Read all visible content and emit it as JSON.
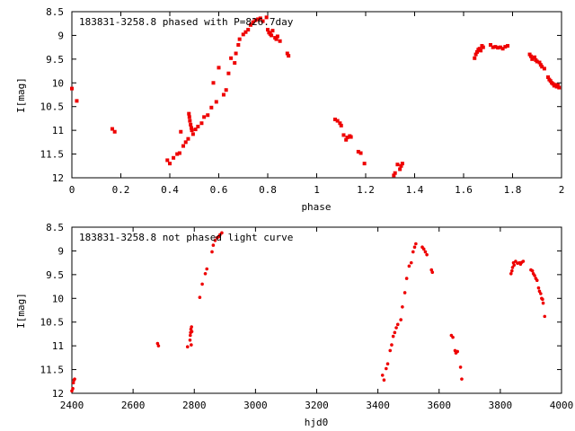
{
  "chart_data": [
    {
      "type": "scatter",
      "title": "183831-3258.8 phased with P=826.7day",
      "xlabel": "phase",
      "ylabel": "I[mag]",
      "xlim": [
        0,
        2
      ],
      "ylim": [
        12,
        8.5
      ],
      "y_inverted": true,
      "grid": false,
      "xticks": [
        "0",
        "0.2",
        "0.4",
        "0.6",
        "0.8",
        "1",
        "1.2",
        "1.4",
        "1.6",
        "1.8",
        "2"
      ],
      "yticks": [
        "8.5",
        "9",
        "9.5",
        "10",
        "10.5",
        "11",
        "11.5",
        "12"
      ],
      "marker_color": "#ee0000",
      "marker": "filled-square",
      "points": [
        [
          0.0,
          10.12
        ],
        [
          0.02,
          10.38
        ],
        [
          0.165,
          10.97
        ],
        [
          0.175,
          11.03
        ],
        [
          0.39,
          11.63
        ],
        [
          0.4,
          11.7
        ],
        [
          0.415,
          11.58
        ],
        [
          0.43,
          11.5
        ],
        [
          0.44,
          11.48
        ],
        [
          0.445,
          11.03
        ],
        [
          0.455,
          11.33
        ],
        [
          0.465,
          11.25
        ],
        [
          0.475,
          11.18
        ],
        [
          0.478,
          10.65
        ],
        [
          0.48,
          10.72
        ],
        [
          0.482,
          10.8
        ],
        [
          0.485,
          10.88
        ],
        [
          0.488,
          10.95
        ],
        [
          0.49,
          11.0
        ],
        [
          0.495,
          11.08
        ],
        [
          0.505,
          10.98
        ],
        [
          0.515,
          10.92
        ],
        [
          0.53,
          10.85
        ],
        [
          0.54,
          10.72
        ],
        [
          0.555,
          10.68
        ],
        [
          0.57,
          10.52
        ],
        [
          0.578,
          10.0
        ],
        [
          0.59,
          10.4
        ],
        [
          0.6,
          9.68
        ],
        [
          0.62,
          10.25
        ],
        [
          0.63,
          10.15
        ],
        [
          0.64,
          9.8
        ],
        [
          0.65,
          9.48
        ],
        [
          0.665,
          9.58
        ],
        [
          0.67,
          9.38
        ],
        [
          0.68,
          9.2
        ],
        [
          0.685,
          9.08
        ],
        [
          0.7,
          8.98
        ],
        [
          0.71,
          8.93
        ],
        [
          0.72,
          8.88
        ],
        [
          0.73,
          8.78
        ],
        [
          0.74,
          8.72
        ],
        [
          0.75,
          8.68
        ],
        [
          0.76,
          8.66
        ],
        [
          0.77,
          8.64
        ],
        [
          0.78,
          8.7
        ],
        [
          0.795,
          8.62
        ],
        [
          0.8,
          8.88
        ],
        [
          0.805,
          8.94
        ],
        [
          0.81,
          8.97
        ],
        [
          0.815,
          9.0
        ],
        [
          0.82,
          8.9
        ],
        [
          0.83,
          9.05
        ],
        [
          0.835,
          9.08
        ],
        [
          0.84,
          9.02
        ],
        [
          0.85,
          9.12
        ],
        [
          0.88,
          9.38
        ],
        [
          0.885,
          9.43
        ],
        [
          1.075,
          10.77
        ],
        [
          1.085,
          10.8
        ],
        [
          1.095,
          10.85
        ],
        [
          1.1,
          10.9
        ],
        [
          1.11,
          11.1
        ],
        [
          1.12,
          11.2
        ],
        [
          1.125,
          11.15
        ],
        [
          1.135,
          11.12
        ],
        [
          1.14,
          11.14
        ],
        [
          1.17,
          11.45
        ],
        [
          1.18,
          11.48
        ],
        [
          1.195,
          11.7
        ],
        [
          1.315,
          11.95
        ],
        [
          1.32,
          11.9
        ],
        [
          1.33,
          11.72
        ],
        [
          1.34,
          11.82
        ],
        [
          1.345,
          11.75
        ],
        [
          1.35,
          11.7
        ],
        [
          1.645,
          9.48
        ],
        [
          1.65,
          9.4
        ],
        [
          1.655,
          9.35
        ],
        [
          1.66,
          9.3
        ],
        [
          1.665,
          9.28
        ],
        [
          1.67,
          9.32
        ],
        [
          1.675,
          9.22
        ],
        [
          1.68,
          9.25
        ],
        [
          1.71,
          9.2
        ],
        [
          1.72,
          9.25
        ],
        [
          1.73,
          9.24
        ],
        [
          1.74,
          9.26
        ],
        [
          1.75,
          9.25
        ],
        [
          1.76,
          9.28
        ],
        [
          1.77,
          9.24
        ],
        [
          1.78,
          9.22
        ],
        [
          1.87,
          9.4
        ],
        [
          1.875,
          9.44
        ],
        [
          1.88,
          9.5
        ],
        [
          1.89,
          9.46
        ],
        [
          1.895,
          9.52
        ],
        [
          1.9,
          9.55
        ],
        [
          1.91,
          9.57
        ],
        [
          1.915,
          9.62
        ],
        [
          1.92,
          9.66
        ],
        [
          1.93,
          9.7
        ],
        [
          1.945,
          9.88
        ],
        [
          1.95,
          9.93
        ],
        [
          1.955,
          9.96
        ],
        [
          1.96,
          10.0
        ],
        [
          1.965,
          10.02
        ],
        [
          1.97,
          10.06
        ],
        [
          1.975,
          10.04
        ],
        [
          1.98,
          10.08
        ],
        [
          1.985,
          10.05
        ],
        [
          1.99,
          10.1
        ]
      ]
    },
    {
      "type": "scatter",
      "title": "183831-3258.8 not phased light curve",
      "xlabel": "hjd0",
      "ylabel": "I[mag]",
      "xlim": [
        2400,
        4000
      ],
      "ylim": [
        12,
        8.5
      ],
      "y_inverted": true,
      "grid": false,
      "xticks": [
        "2400",
        "2600",
        "2800",
        "3000",
        "3200",
        "3400",
        "3600",
        "3800",
        "4000"
      ],
      "yticks": [
        "8.5",
        "9",
        "9.5",
        "10",
        "10.5",
        "11",
        "11.5",
        "12"
      ],
      "marker_color": "#ee0000",
      "marker": "dot",
      "points": [
        [
          2400,
          11.95
        ],
        [
          2403,
          11.9
        ],
        [
          2405,
          11.78
        ],
        [
          2407,
          11.72
        ],
        [
          2409,
          11.7
        ],
        [
          2680,
          10.95
        ],
        [
          2683,
          11.0
        ],
        [
          2778,
          11.02
        ],
        [
          2786,
          10.88
        ],
        [
          2787,
          10.78
        ],
        [
          2788,
          10.72
        ],
        [
          2789,
          10.65
        ],
        [
          2790,
          10.98
        ],
        [
          2791,
          10.6
        ],
        [
          2792,
          10.7
        ],
        [
          2818,
          9.98
        ],
        [
          2826,
          9.7
        ],
        [
          2836,
          9.48
        ],
        [
          2841,
          9.38
        ],
        [
          2858,
          9.02
        ],
        [
          2862,
          8.88
        ],
        [
          2868,
          8.78
        ],
        [
          2875,
          8.72
        ],
        [
          2880,
          8.7
        ],
        [
          2884,
          8.66
        ],
        [
          2890,
          8.62
        ],
        [
          3415,
          11.62
        ],
        [
          3420,
          11.72
        ],
        [
          3427,
          11.48
        ],
        [
          3432,
          11.38
        ],
        [
          3440,
          11.1
        ],
        [
          3445,
          10.98
        ],
        [
          3450,
          10.8
        ],
        [
          3455,
          10.72
        ],
        [
          3460,
          10.62
        ],
        [
          3465,
          10.55
        ],
        [
          3475,
          10.45
        ],
        [
          3480,
          10.18
        ],
        [
          3488,
          9.88
        ],
        [
          3494,
          9.58
        ],
        [
          3502,
          9.32
        ],
        [
          3509,
          9.25
        ],
        [
          3515,
          9.02
        ],
        [
          3520,
          8.92
        ],
        [
          3524,
          8.85
        ],
        [
          3545,
          8.92
        ],
        [
          3550,
          8.96
        ],
        [
          3555,
          9.02
        ],
        [
          3560,
          9.08
        ],
        [
          3575,
          9.4
        ],
        [
          3578,
          9.45
        ],
        [
          3640,
          10.78
        ],
        [
          3645,
          10.82
        ],
        [
          3652,
          11.1
        ],
        [
          3655,
          11.15
        ],
        [
          3660,
          11.12
        ],
        [
          3670,
          11.45
        ],
        [
          3674,
          11.7
        ],
        [
          3835,
          9.48
        ],
        [
          3838,
          9.42
        ],
        [
          3840,
          9.35
        ],
        [
          3843,
          9.25
        ],
        [
          3845,
          9.3
        ],
        [
          3850,
          9.22
        ],
        [
          3856,
          9.26
        ],
        [
          3862,
          9.25
        ],
        [
          3866,
          9.28
        ],
        [
          3870,
          9.24
        ],
        [
          3875,
          9.22
        ],
        [
          3900,
          9.4
        ],
        [
          3905,
          9.42
        ],
        [
          3908,
          9.48
        ],
        [
          3912,
          9.52
        ],
        [
          3916,
          9.58
        ],
        [
          3920,
          9.62
        ],
        [
          3925,
          9.78
        ],
        [
          3928,
          9.85
        ],
        [
          3932,
          9.9
        ],
        [
          3935,
          10.0
        ],
        [
          3938,
          10.02
        ],
        [
          3940,
          10.1
        ],
        [
          3945,
          10.38
        ]
      ]
    }
  ]
}
